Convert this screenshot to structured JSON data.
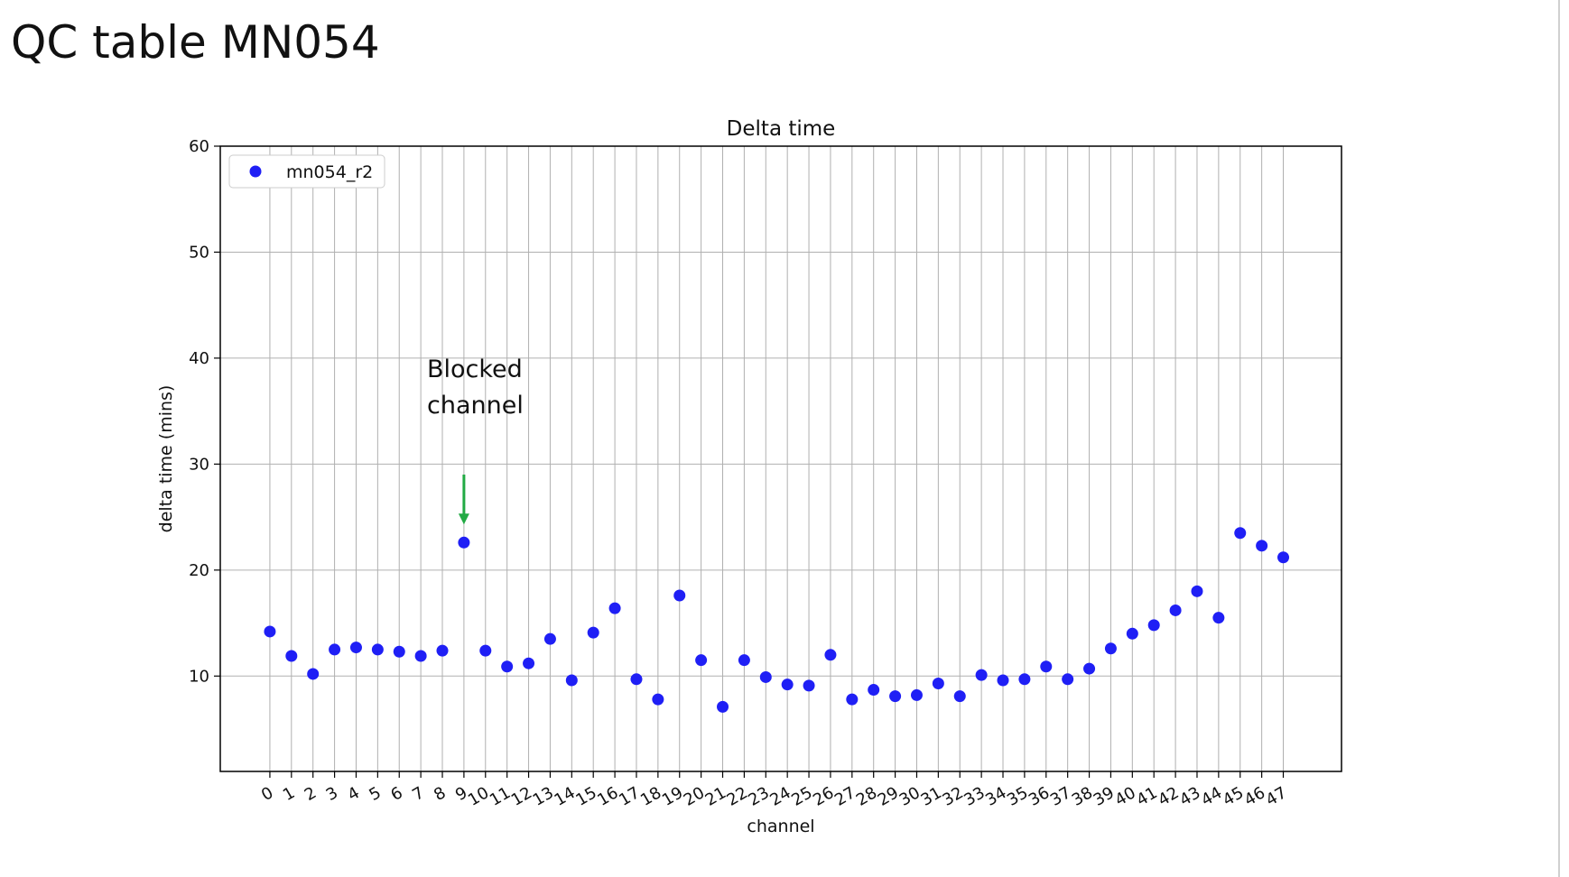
{
  "slide": {
    "title": "QC table MN054"
  },
  "chart_data": {
    "type": "scatter",
    "title": "Delta time",
    "xlabel": "channel",
    "ylabel": "delta time (mins)",
    "ylim": [
      1,
      60
    ],
    "yticks": [
      10,
      20,
      30,
      40,
      50,
      60
    ],
    "xlim": [
      -2.3,
      49.7
    ],
    "grid": true,
    "legend_placement": "top-left",
    "series": [
      {
        "name": "mn054_r2",
        "color": "#1f1ff5",
        "x": [
          0,
          1,
          2,
          3,
          4,
          5,
          6,
          7,
          8,
          9,
          10,
          11,
          12,
          13,
          14,
          15,
          16,
          17,
          18,
          19,
          20,
          21,
          22,
          23,
          24,
          25,
          26,
          27,
          28,
          29,
          30,
          31,
          32,
          33,
          34,
          35,
          36,
          37,
          38,
          39,
          40,
          41,
          42,
          43,
          44,
          45,
          46,
          47
        ],
        "y": [
          14.2,
          11.9,
          10.2,
          12.5,
          12.7,
          12.5,
          12.3,
          11.9,
          12.4,
          22.6,
          12.4,
          10.9,
          11.2,
          13.5,
          9.6,
          14.1,
          16.4,
          9.7,
          7.8,
          17.6,
          11.5,
          7.1,
          11.5,
          9.9,
          9.2,
          9.1,
          12.0,
          7.8,
          8.7,
          8.1,
          8.2,
          9.3,
          8.1,
          10.1,
          9.6,
          9.7,
          10.9,
          9.7,
          10.7,
          12.6,
          14.0,
          14.8,
          16.2,
          18.0,
          15.5,
          23.5,
          22.3,
          21.2
        ]
      }
    ],
    "annotation": {
      "lines": [
        "Blocked",
        "channel"
      ],
      "target_x": 9,
      "arrow_color": "#22aa44"
    }
  }
}
